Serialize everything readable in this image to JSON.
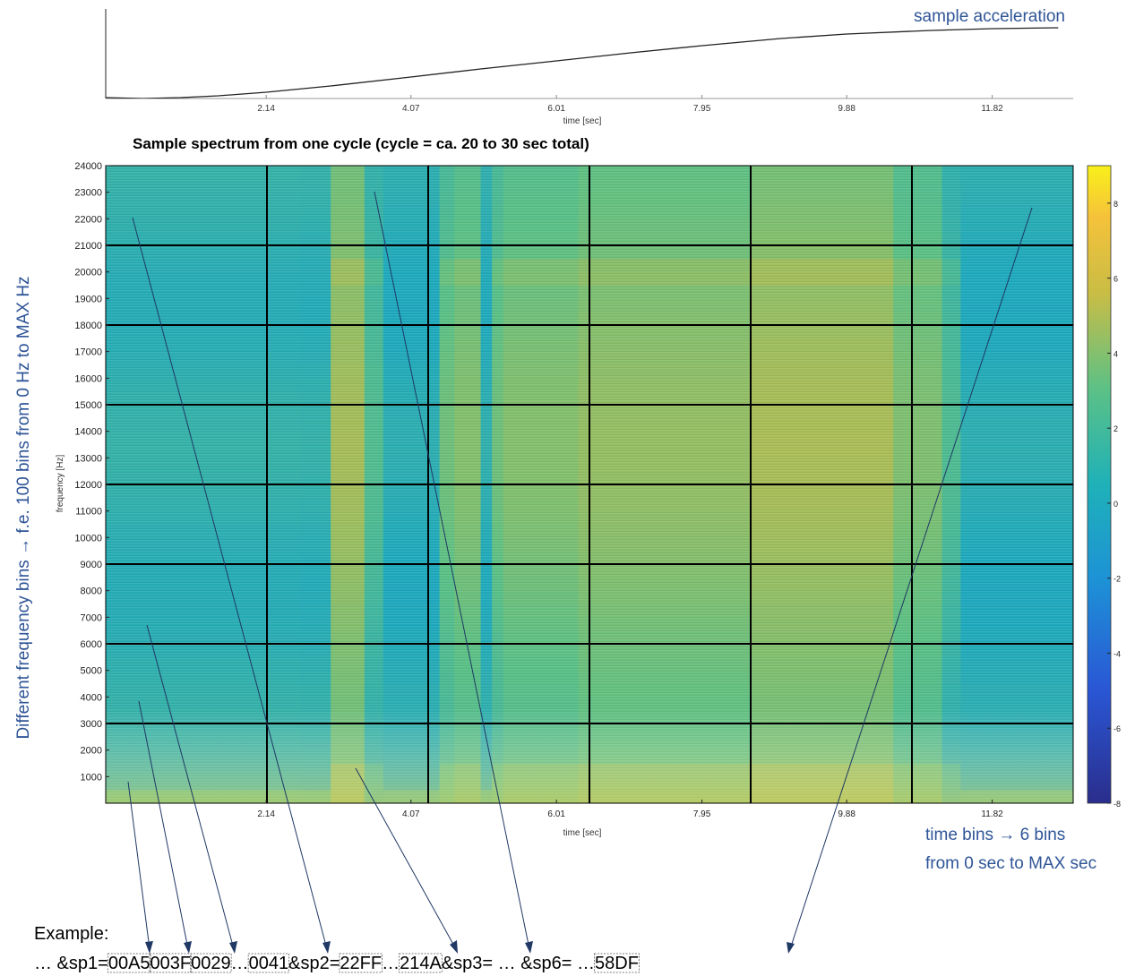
{
  "accel_label": "sample acceleration",
  "spectrum_title": "Sample spectrum from one cycle (cycle = ca. 20 to 30 sec total)",
  "left_note": "Different frequency bins → f.e. 100 bins from 0 Hz to MAX Hz",
  "time_note_line1": "time bins → 6 bins",
  "time_note_line2": "from 0 sec to MAX sec",
  "example_label": "Example:",
  "example_line": {
    "pre1": "… &sp1=",
    "box1": "00A5",
    "box2": "003F",
    "box3": "0029",
    "mid1": " …  ",
    "box4": "0041",
    "mid2": "&sp2=",
    "box5": "22FF",
    "mid3": " … ",
    "box6": "214A",
    "mid4": "&sp3= … &sp6= … ",
    "box7": "58DF"
  },
  "colors": {
    "annotation": "#2f5597",
    "low": "#1a8fd0",
    "mid": "#7cc08e",
    "high": "#f0c040",
    "grid": "#000000"
  },
  "chart_data": [
    {
      "type": "line",
      "title": "",
      "series_label": "sample acceleration",
      "xlabel": "time [sec]",
      "ylabel": "",
      "xlim": [
        0,
        12.9
      ],
      "ylim": [
        0,
        1
      ],
      "x_ticks": [
        "2.14",
        "4.07",
        "6.01",
        "7.95",
        "9.88",
        "11.82"
      ],
      "x": [
        0,
        0.5,
        1.0,
        1.5,
        2.14,
        3.0,
        4.07,
        5.0,
        6.01,
        7.0,
        7.95,
        9.0,
        9.88,
        11.0,
        11.82,
        12.7
      ],
      "y": [
        0.01,
        0.0,
        0.01,
        0.03,
        0.07,
        0.14,
        0.24,
        0.33,
        0.42,
        0.51,
        0.59,
        0.67,
        0.72,
        0.76,
        0.78,
        0.79
      ]
    },
    {
      "type": "heatmap",
      "title": "Sample spectrum from one cycle (cycle = ca. 20 to 30 sec total)",
      "xlabel": "time [sec]",
      "ylabel": "frequency [Hz]",
      "xlim": [
        0,
        12.9
      ],
      "ylim": [
        0,
        24000
      ],
      "x_ticks": [
        "2.14",
        "4.07",
        "6.01",
        "7.95",
        "9.88",
        "11.82"
      ],
      "y_ticks": [
        "1000",
        "2000",
        "3000",
        "4000",
        "5000",
        "6000",
        "7000",
        "8000",
        "9000",
        "10000",
        "11000",
        "12000",
        "13000",
        "14000",
        "15000",
        "16000",
        "17000",
        "18000",
        "19000",
        "20000",
        "21000",
        "22000",
        "23000",
        "24000"
      ],
      "colorbar_ticks": [
        "8",
        "6",
        "4",
        "2",
        "0",
        "-2",
        "-4",
        "-6",
        "-8"
      ],
      "colorbar_range": [
        -8,
        9
      ],
      "time_bins": 6,
      "freq_grid_step_hz": 3000,
      "time_band_levels": [
        {
          "t0": 0.0,
          "t1": 2.6,
          "level": 0.5
        },
        {
          "t0": 2.6,
          "t1": 3.0,
          "level": 0.45
        },
        {
          "t0": 3.0,
          "t1": 3.45,
          "level": 3.2
        },
        {
          "t0": 3.45,
          "t1": 3.7,
          "level": 1.5
        },
        {
          "t0": 3.7,
          "t1": 4.45,
          "level": 0.2
        },
        {
          "t0": 4.45,
          "t1": 4.65,
          "level": 2.2
        },
        {
          "t0": 4.65,
          "t1": 5.0,
          "level": 2.6
        },
        {
          "t0": 5.0,
          "t1": 5.15,
          "level": 0.3
        },
        {
          "t0": 5.15,
          "t1": 5.3,
          "level": 2.2
        },
        {
          "t0": 5.3,
          "t1": 6.3,
          "level": 2.6
        },
        {
          "t0": 6.3,
          "t1": 8.6,
          "level": 2.9
        },
        {
          "t0": 8.6,
          "t1": 10.5,
          "level": 3.3
        },
        {
          "t0": 10.5,
          "t1": 11.15,
          "level": 2.5
        },
        {
          "t0": 11.15,
          "t1": 11.4,
          "level": 1.4
        },
        {
          "t0": 11.4,
          "t1": 12.9,
          "level": 0.2
        }
      ]
    }
  ]
}
